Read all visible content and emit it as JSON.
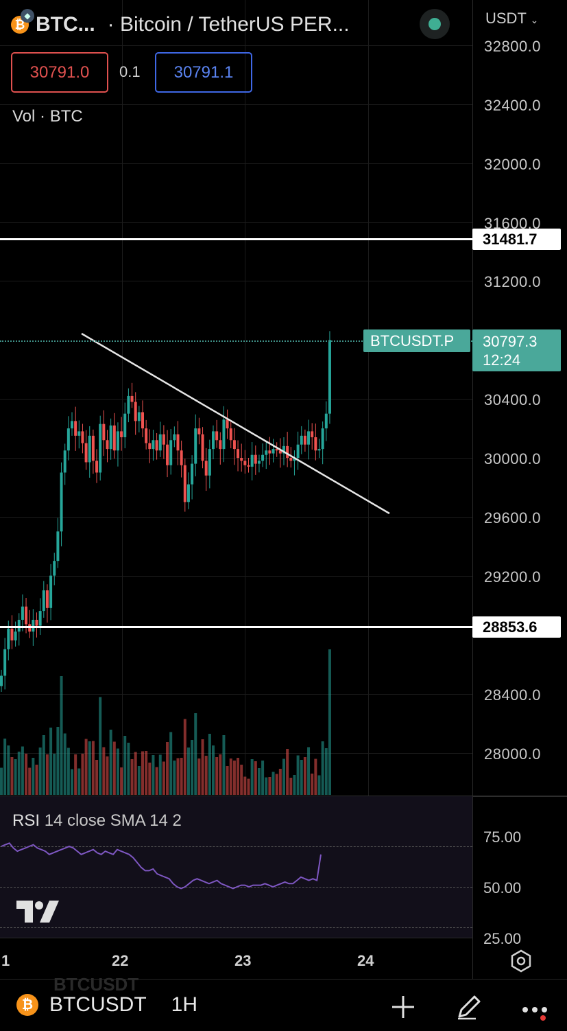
{
  "header": {
    "symbol": "BTC...",
    "description": "· Bitcoin / TetherUS PER...",
    "currency": "USDT",
    "bid": "30791.0",
    "spread": "0.1",
    "ask": "30791.1",
    "volume_label": "Vol · BTC"
  },
  "price_axis_ticks": [
    "32800.0",
    "32400.0",
    "32000.0",
    "31600.0",
    "31200.0",
    "30400.0",
    "30000.0",
    "29600.0",
    "29200.0",
    "28400.0",
    "28000.0"
  ],
  "horizontal_lines": [
    {
      "label": "31481.7",
      "price": 31481.7
    },
    {
      "label": "28853.6",
      "price": 28853.6
    }
  ],
  "last_price": {
    "symbol_tag": "BTCUSDT.P",
    "price": "30797.3",
    "countdown": "12:24"
  },
  "colors": {
    "up": "#26a69a",
    "down": "#ef5350",
    "rsi_line": "#7e57c2",
    "accent": "#4aa89a"
  },
  "rsi": {
    "name": "RSI",
    "params": "14 close SMA 14 2",
    "ticks": [
      "75.00",
      "50.00",
      "25.00"
    ]
  },
  "time_axis": [
    "1",
    "22",
    "23",
    "24"
  ],
  "bottom_bar": {
    "symbol": "BTCUSDT",
    "interval": "1H",
    "ghost_text": "BTCUSDT"
  }
}
